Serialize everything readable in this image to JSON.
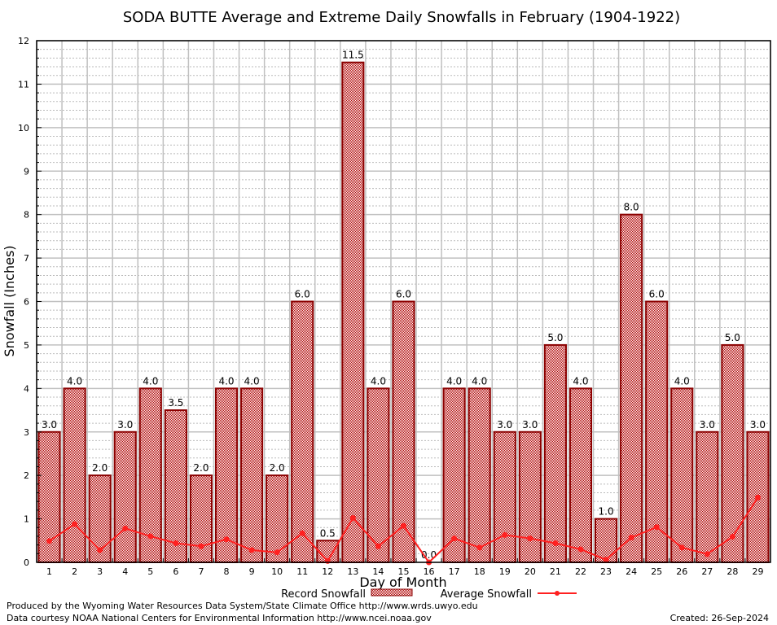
{
  "chart_data": {
    "type": "bar",
    "title": "SODA BUTTE Average and Extreme Daily Snowfalls in February (1904-1922)",
    "xlabel": "Day of Month",
    "ylabel": "Snowfall (Inches)",
    "ylim": [
      0,
      12
    ],
    "yticks": [
      0,
      1,
      2,
      3,
      4,
      5,
      6,
      7,
      8,
      9,
      10,
      11,
      12
    ],
    "grid": true,
    "legend_position": "bottom",
    "categories": [
      "1",
      "2",
      "3",
      "4",
      "5",
      "6",
      "7",
      "8",
      "9",
      "10",
      "11",
      "12",
      "13",
      "14",
      "15",
      "16",
      "17",
      "18",
      "19",
      "20",
      "21",
      "22",
      "23",
      "24",
      "25",
      "26",
      "27",
      "28",
      "29"
    ],
    "series": [
      {
        "name": "Record Snowfall",
        "type": "bar",
        "color": "#a00000",
        "values": [
          3.0,
          4.0,
          2.0,
          3.0,
          4.0,
          3.5,
          2.0,
          4.0,
          4.0,
          2.0,
          6.0,
          0.5,
          11.5,
          4.0,
          6.0,
          0.0,
          4.0,
          4.0,
          3.0,
          3.0,
          5.0,
          4.0,
          1.0,
          8.0,
          6.0,
          4.0,
          3.0,
          5.0,
          3.0
        ],
        "labels": [
          "3.0",
          "4.0",
          "2.0",
          "3.0",
          "4.0",
          "3.5",
          "2.0",
          "4.0",
          "4.0",
          "2.0",
          "6.0",
          "0.5",
          "11.5",
          "4.0",
          "6.0",
          "0.0",
          "4.0",
          "4.0",
          "3.0",
          "3.0",
          "5.0",
          "4.0",
          "1.0",
          "8.0",
          "6.0",
          "4.0",
          "3.0",
          "5.0",
          "3.0"
        ]
      },
      {
        "name": "Average Snowfall",
        "type": "line",
        "color": "#ff2020",
        "values": [
          0.49,
          0.88,
          0.28,
          0.78,
          0.6,
          0.44,
          0.37,
          0.53,
          0.28,
          0.23,
          0.67,
          0.03,
          1.02,
          0.37,
          0.84,
          0.0,
          0.55,
          0.34,
          0.63,
          0.55,
          0.44,
          0.3,
          0.06,
          0.57,
          0.81,
          0.34,
          0.19,
          0.59,
          1.49
        ]
      }
    ]
  },
  "footer": {
    "credit1": "Produced by the Wyoming Water Resources Data System/State Climate Office http://www.wrds.uwyo.edu",
    "credit2": "Data courtesy NOAA National Centers for Environmental Information http://www.ncei.noaa.gov",
    "created": "Created: 26-Sep-2024"
  }
}
